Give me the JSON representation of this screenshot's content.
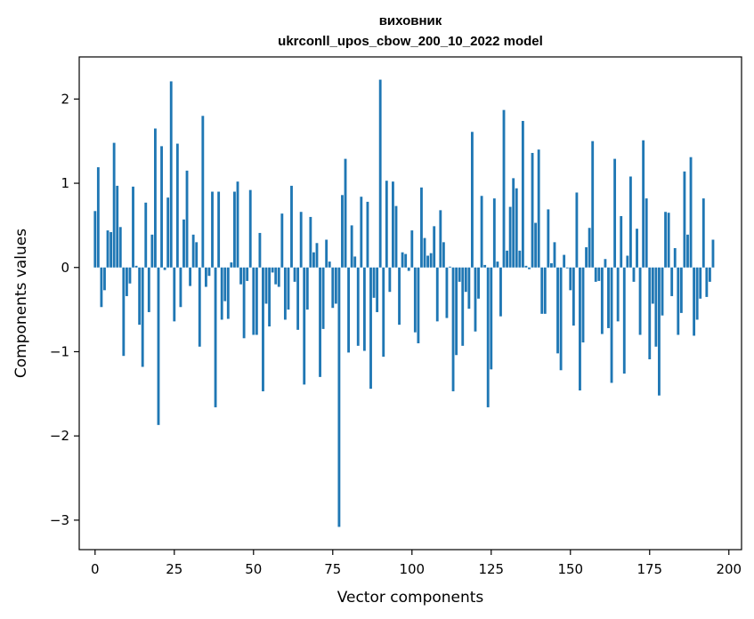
{
  "chart_data": {
    "type": "bar",
    "title": "виховник",
    "subtitle": "ukrconll_upos_cbow_200_10_2022 model",
    "xlabel": "Vector components",
    "ylabel": "Components values",
    "xlim": [
      -5,
      204
    ],
    "ylim": [
      -3.35,
      2.5
    ],
    "xticks": [
      0,
      25,
      50,
      75,
      100,
      125,
      150,
      175,
      200
    ],
    "yticks": [
      -3,
      -2,
      -1,
      0,
      1,
      2
    ],
    "ytick_labels": [
      "−3",
      "−2",
      "−1",
      "0",
      "1",
      "2"
    ],
    "bar_color": "#1f77b4",
    "grid": false,
    "values": [
      0.67,
      1.19,
      -0.47,
      -0.27,
      0.44,
      0.42,
      1.48,
      0.97,
      0.48,
      -1.05,
      -0.34,
      -0.19,
      0.96,
      0.02,
      -0.68,
      -1.18,
      0.77,
      -0.53,
      0.39,
      1.65,
      -1.87,
      1.44,
      -0.03,
      0.83,
      2.21,
      -0.64,
      1.47,
      -0.47,
      0.57,
      1.15,
      -0.22,
      0.39,
      0.3,
      -0.94,
      1.8,
      -0.23,
      -0.1,
      0.9,
      -1.66,
      0.9,
      -0.62,
      -0.4,
      -0.61,
      0.06,
      0.9,
      1.02,
      -0.2,
      -0.84,
      -0.16,
      0.92,
      -0.8,
      -0.8,
      0.41,
      -1.47,
      -0.43,
      -0.7,
      -0.06,
      -0.2,
      -0.23,
      0.64,
      -0.62,
      -0.5,
      0.97,
      -0.17,
      -0.74,
      0.66,
      -1.39,
      -0.5,
      0.6,
      0.18,
      0.29,
      -1.3,
      -0.73,
      0.33,
      0.07,
      -0.48,
      -0.43,
      -3.08,
      0.86,
      1.29,
      -1.01,
      0.5,
      0.13,
      -0.93,
      0.84,
      -0.99,
      0.78,
      -1.44,
      -0.36,
      -0.53,
      2.23,
      -1.06,
      1.03,
      -0.29,
      1.02,
      0.73,
      -0.68,
      0.18,
      0.16,
      -0.04,
      0.44,
      -0.77,
      -0.9,
      0.95,
      0.35,
      0.14,
      0.17,
      0.49,
      -0.64,
      0.68,
      0.3,
      -0.6,
      0.01,
      -1.47,
      -1.04,
      -0.17,
      -0.93,
      -0.29,
      -0.49,
      1.61,
      -0.76,
      -0.37,
      0.85,
      0.03,
      -1.66,
      -1.21,
      0.82,
      0.07,
      -0.58,
      1.87,
      0.2,
      0.72,
      1.06,
      0.94,
      0.2,
      1.74,
      0.02,
      -0.02,
      1.36,
      0.53,
      1.4,
      -0.55,
      -0.55,
      0.69,
      0.05,
      0.3,
      -1.02,
      -1.22,
      0.15,
      -0.01,
      -0.27,
      -0.69,
      0.89,
      -1.46,
      -0.89,
      0.24,
      0.47,
      1.5,
      -0.17,
      -0.16,
      -0.79,
      0.1,
      -0.72,
      -1.37,
      1.29,
      -0.64,
      0.61,
      -1.26,
      0.14,
      1.08,
      -0.17,
      0.46,
      -0.8,
      1.51,
      0.82,
      -1.09,
      -0.43,
      -0.94,
      -1.52,
      -0.57,
      0.66,
      0.65,
      -0.34,
      0.23,
      -0.8,
      -0.54,
      1.14,
      0.39,
      1.31,
      -0.81,
      -0.62,
      -0.37,
      0.82,
      -0.35,
      -0.17,
      0.33
    ]
  }
}
